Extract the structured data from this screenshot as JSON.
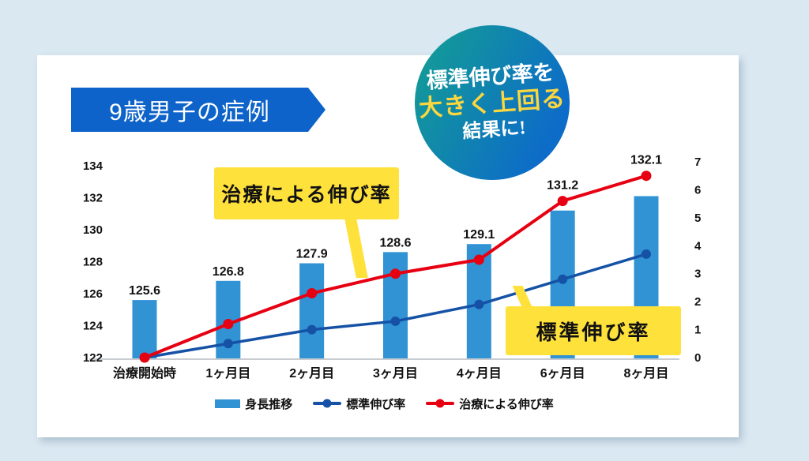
{
  "header": {
    "title": "9歳男子の症例"
  },
  "badge": {
    "line1": "標準伸び率を",
    "line2": "大きく上回る",
    "line3": "結果に!"
  },
  "callouts": {
    "treatment": "治療による伸び率",
    "standard": "標準伸び率"
  },
  "legend": {
    "bar_label": "身長推移",
    "standard_label": "標準伸び率",
    "treatment_label": "治療による伸び率"
  },
  "colors": {
    "background": "#dae8f2",
    "card": "#ffffff",
    "banner_blue": "#0d63c9",
    "bar_blue": "#3192d4",
    "line_blue": "#1552a6",
    "line_red": "#e60012",
    "callout_yellow": "#ffe13c",
    "badge_gradient_start": "#14a092",
    "badge_gradient_end": "#0d6cc8",
    "axis_line": "#c8ccd0",
    "text": "#111111"
  },
  "chart_data": {
    "type": "combo-bar-line",
    "categories": [
      "治療開始時",
      "1ヶ月目",
      "2ヶ月目",
      "3ヶ月目",
      "4ヶ月目",
      "6ヶ月目",
      "8ヶ月目"
    ],
    "bar_series": {
      "name": "身長推移",
      "axis": "left",
      "values": [
        125.6,
        126.8,
        127.9,
        128.6,
        129.1,
        131.2,
        132.1
      ],
      "labels": [
        "125.6",
        "126.8",
        "127.9",
        "128.6",
        "129.1",
        "131.2",
        "132.1"
      ],
      "color": "#3192d4"
    },
    "series": [
      {
        "name": "標準伸び率",
        "axis": "right",
        "values": [
          0,
          0.5,
          1.0,
          1.3,
          1.9,
          2.8,
          3.7
        ],
        "color": "#1552a6"
      },
      {
        "name": "治療による伸び率",
        "axis": "right",
        "values": [
          0,
          1.2,
          2.3,
          3.0,
          3.5,
          5.6,
          6.5
        ],
        "color": "#e60012"
      }
    ],
    "left_axis": {
      "min": 122,
      "max": 134,
      "step": 2,
      "ticks": [
        "134",
        "132",
        "130",
        "128",
        "126",
        "124",
        "122"
      ]
    },
    "right_axis": {
      "min": 0,
      "max": 7,
      "step": 1,
      "ticks": [
        "7",
        "6",
        "5",
        "4",
        "3",
        "2",
        "1",
        "0"
      ]
    },
    "grid": false,
    "legend_position": "bottom"
  }
}
